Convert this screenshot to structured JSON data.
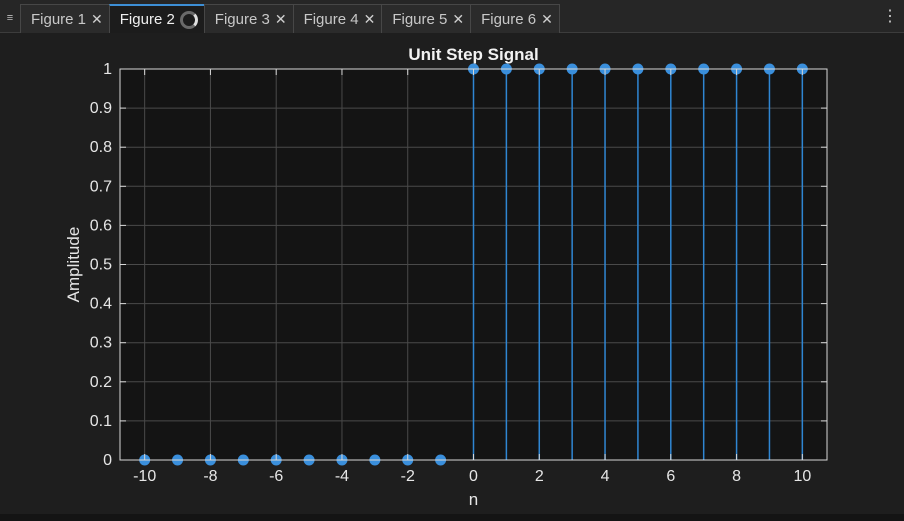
{
  "tabs": {
    "menu_icon": "≡",
    "items": [
      {
        "label": "Figure 1",
        "close": "✕"
      },
      {
        "label": "Figure 2",
        "close": ""
      },
      {
        "label": "Figure 3",
        "close": "✕"
      },
      {
        "label": "Figure 4",
        "close": "✕"
      },
      {
        "label": "Figure 5",
        "close": "✕"
      },
      {
        "label": "Figure 6",
        "close": "✕"
      }
    ],
    "active_index": 1,
    "more_icon": "⋮"
  },
  "colors": {
    "accent": "#3d8fd6",
    "stem": "#2f86d3",
    "marker": "#3a8fdc",
    "axes_bg": "#141414",
    "grid": "#4a4a4a",
    "axis_text": "#e6e6e6"
  },
  "chart_data": {
    "type": "stem",
    "title": "Unit Step Signal",
    "xlabel": "n",
    "ylabel": "Amplitude",
    "x": [
      -10,
      -9,
      -8,
      -7,
      -6,
      -5,
      -4,
      -3,
      -2,
      -1,
      0,
      1,
      2,
      3,
      4,
      5,
      6,
      7,
      8,
      9,
      10
    ],
    "y": [
      0,
      0,
      0,
      0,
      0,
      0,
      0,
      0,
      0,
      0,
      1,
      1,
      1,
      1,
      1,
      1,
      1,
      1,
      1,
      1,
      1
    ],
    "xlim": [
      -10.75,
      10.75
    ],
    "ylim": [
      0,
      1
    ],
    "xticks": [
      -10,
      -8,
      -6,
      -4,
      -2,
      0,
      2,
      4,
      6,
      8,
      10
    ],
    "xtick_labels": [
      "-10",
      "-8",
      "-6",
      "-4",
      "-2",
      "0",
      "2",
      "4",
      "6",
      "8",
      "10"
    ],
    "yticks": [
      0,
      0.1,
      0.2,
      0.3,
      0.4,
      0.5,
      0.6,
      0.7,
      0.8,
      0.9,
      1
    ],
    "ytick_labels": [
      "0",
      "0.1",
      "0.2",
      "0.3",
      "0.4",
      "0.5",
      "0.6",
      "0.7",
      "0.8",
      "0.9",
      "1"
    ],
    "grid": true
  }
}
